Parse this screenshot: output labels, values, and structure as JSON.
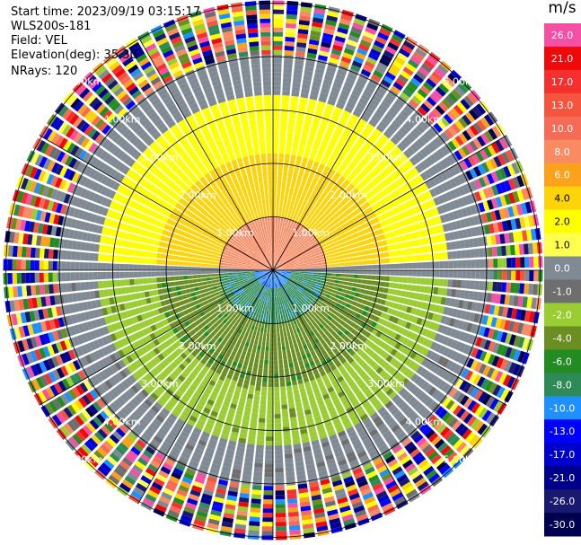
{
  "header": {
    "start_time": "Start time: 2023/09/19 03:15:17",
    "instrument": "WLS200s-181",
    "field": "Field: VEL",
    "elevation": "Elevation(deg): 35.30",
    "nrays": "NRays: 120"
  },
  "colorbar": {
    "title": "m/s",
    "levels": [
      {
        "label": "26.0",
        "color": "#f54fa6"
      },
      {
        "label": "21.0",
        "color": "#ee0a0a"
      },
      {
        "label": "17.0",
        "color": "#f5302f"
      },
      {
        "label": "13.0",
        "color": "#f5553e"
      },
      {
        "label": "10.0",
        "color": "#f56b55"
      },
      {
        "label": "8.0",
        "color": "#f98a62"
      },
      {
        "label": "6.0",
        "color": "#fba21c"
      },
      {
        "label": "4.0",
        "color": "#fdd30a"
      },
      {
        "label": "2.0",
        "color": "#ffff00"
      },
      {
        "label": "1.0",
        "color": "#ffff50"
      },
      {
        "label": "0.0",
        "color": "#7f8a94"
      },
      {
        "label": "-1.0",
        "color": "#6e6e6e"
      },
      {
        "label": "-2.0",
        "color": "#9acd32"
      },
      {
        "label": "-4.0",
        "color": "#6b8e23"
      },
      {
        "label": "-6.0",
        "color": "#228b22"
      },
      {
        "label": "-8.0",
        "color": "#2e8b57"
      },
      {
        "label": "-10.0",
        "color": "#1e90ff"
      },
      {
        "label": "-13.0",
        "color": "#0000ff"
      },
      {
        "label": "-17.0",
        "color": "#0000cd"
      },
      {
        "label": "-21.0",
        "color": "#00008b"
      },
      {
        "label": "-26.0",
        "color": "#191970"
      },
      {
        "label": "-30.0",
        "color": "#000050"
      }
    ]
  },
  "chart_data": {
    "type": "ppi",
    "field": "VEL",
    "units": "m/s",
    "nrays": 120,
    "elevation_deg": 35.3,
    "range_rings": [
      {
        "label": "1.00km",
        "km": 1
      },
      {
        "label": "2.00km",
        "km": 2
      },
      {
        "label": "3.00km",
        "km": 3
      },
      {
        "label": "4.00km",
        "km": 4
      },
      {
        "label": "5.00km",
        "km": 5
      }
    ],
    "spoke_azimuths_deg": [
      0,
      30,
      60,
      90,
      120,
      150,
      180,
      210,
      240,
      270,
      300,
      330
    ],
    "pattern": {
      "north_half": [
        {
          "range_km": [
            0,
            1.0
          ],
          "value": 8.0
        },
        {
          "range_km": [
            1.0,
            2.2
          ],
          "value": 4.0
        },
        {
          "range_km": [
            2.2,
            3.3
          ],
          "value": 2.0
        },
        {
          "range_km": [
            3.3,
            4.0
          ],
          "value": 0.0
        }
      ],
      "south_half": [
        {
          "range_km": [
            0,
            0.35
          ],
          "value": -10.0
        },
        {
          "range_km": [
            0.35,
            1.0
          ],
          "value": -8.0
        },
        {
          "range_km": [
            1.0,
            2.2
          ],
          "value": -4.0
        },
        {
          "range_km": [
            2.2,
            3.3
          ],
          "value": -2.0
        },
        {
          "range_km": [
            3.3,
            4.0
          ],
          "value": 0.0
        }
      ],
      "beyond_range_km": 4.0,
      "beyond_range": "noise"
    }
  }
}
